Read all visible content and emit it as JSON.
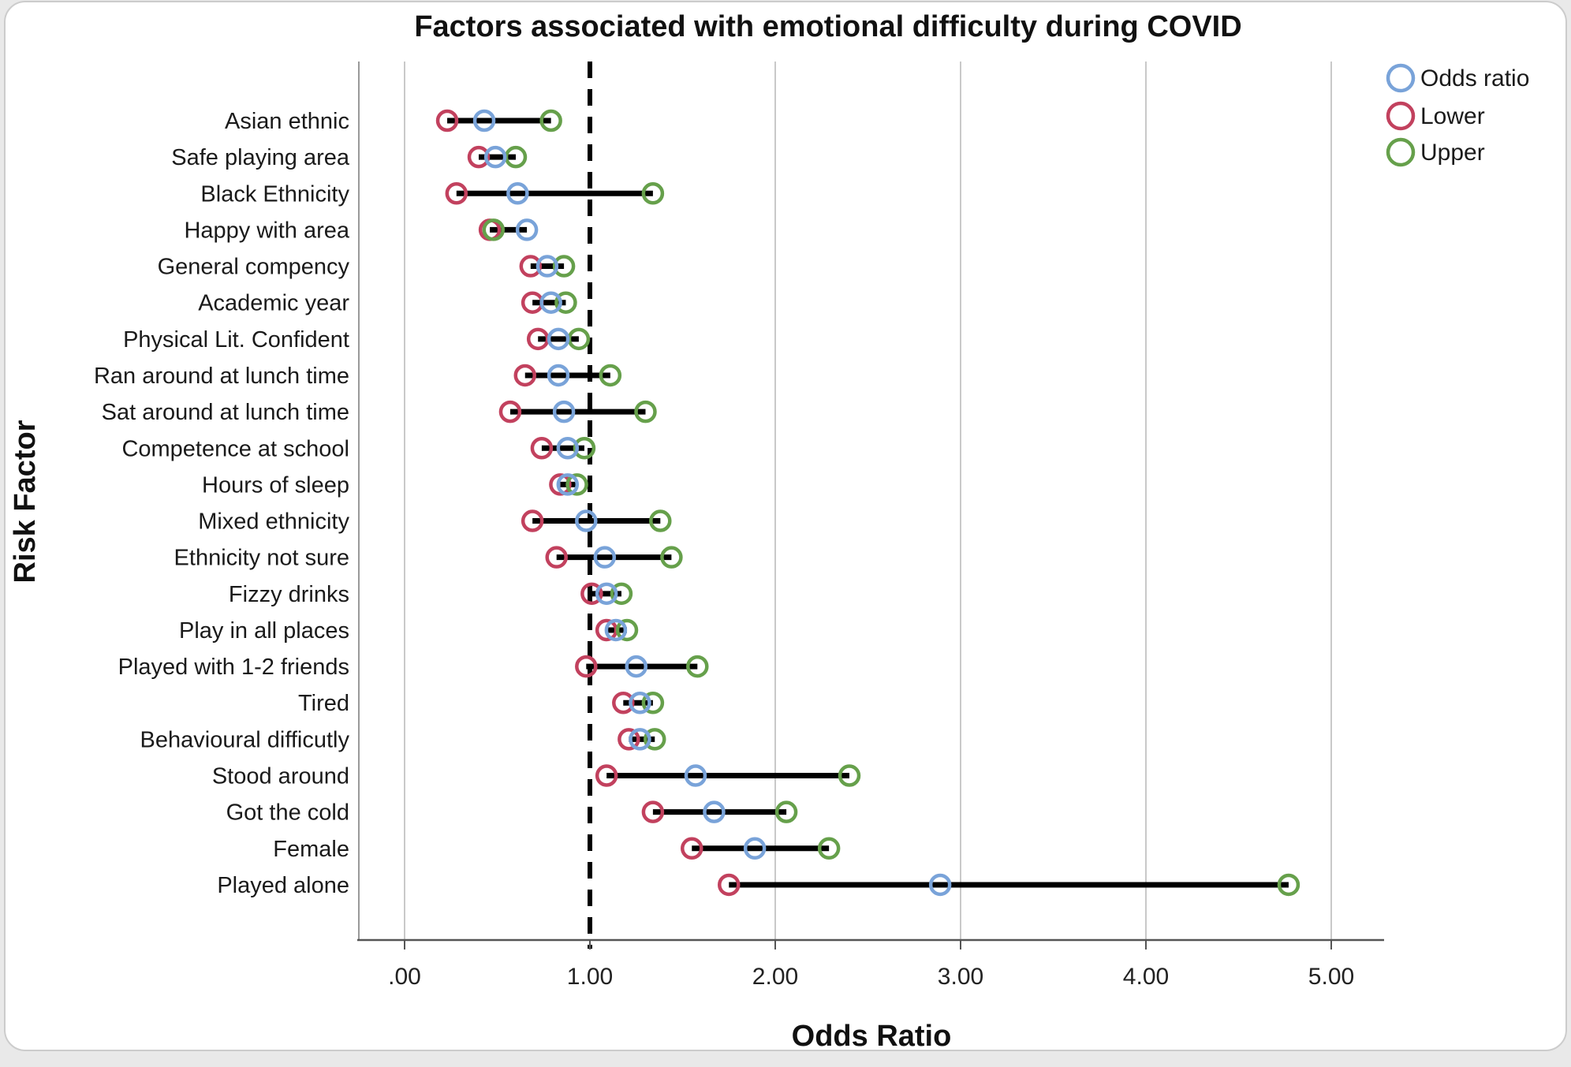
{
  "chart_data": {
    "type": "scatter",
    "subtype": "forest-plot-odds-ratios",
    "title": "Factors associated with emotional difficulty during COVID",
    "xlabel": "Odds Ratio",
    "ylabel": "Risk Factor",
    "x_ticks": [
      ".00",
      "1.00",
      "2.00",
      "3.00",
      "4.00",
      "5.00"
    ],
    "x_tick_values": [
      0,
      1,
      2,
      3,
      4,
      5
    ],
    "xlim": [
      -0.25,
      5.3
    ],
    "grid": "vertical-light-gray",
    "reference_line_value": 1.0,
    "reference_line_style": "black-dashed",
    "legend_position": "top-right",
    "legend": [
      {
        "label": "Odds ratio",
        "color": "#79A3D9"
      },
      {
        "label": "Lower",
        "color": "#C2415E"
      },
      {
        "label": "Upper",
        "color": "#66A04B"
      }
    ],
    "rows": [
      {
        "label": "Asian ethnic",
        "or": 0.43,
        "lower": 0.23,
        "upper": 0.79
      },
      {
        "label": "Safe playing area",
        "or": 0.49,
        "lower": 0.4,
        "upper": 0.6
      },
      {
        "label": "Black Ethnicity",
        "or": 0.61,
        "lower": 0.28,
        "upper": 1.34
      },
      {
        "label": "Happy with area",
        "or": 0.66,
        "lower": 0.46,
        "upper": 0.48
      },
      {
        "label": "General compency",
        "or": 0.77,
        "lower": 0.68,
        "upper": 0.86
      },
      {
        "label": "Academic year",
        "or": 0.79,
        "lower": 0.69,
        "upper": 0.87
      },
      {
        "label": "Physical Lit. Confident",
        "or": 0.83,
        "lower": 0.72,
        "upper": 0.94
      },
      {
        "label": "Ran around at lunch time",
        "or": 0.83,
        "lower": 0.65,
        "upper": 1.11
      },
      {
        "label": "Sat around at lunch time",
        "or": 0.86,
        "lower": 0.57,
        "upper": 1.3
      },
      {
        "label": "Competence at school",
        "or": 0.88,
        "lower": 0.74,
        "upper": 0.97
      },
      {
        "label": "Hours of sleep",
        "or": 0.88,
        "lower": 0.84,
        "upper": 0.93
      },
      {
        "label": "Mixed ethnicity",
        "or": 0.98,
        "lower": 0.69,
        "upper": 1.38
      },
      {
        "label": "Ethnicity not sure",
        "or": 1.08,
        "lower": 0.82,
        "upper": 1.44
      },
      {
        "label": "Fizzy drinks",
        "or": 1.09,
        "lower": 1.01,
        "upper": 1.17
      },
      {
        "label": "Play in all places",
        "or": 1.14,
        "lower": 1.09,
        "upper": 1.2
      },
      {
        "label": "Played with 1-2 friends",
        "or": 1.25,
        "lower": 0.98,
        "upper": 1.58
      },
      {
        "label": "Tired",
        "or": 1.27,
        "lower": 1.18,
        "upper": 1.34
      },
      {
        "label": "Behavioural difficutly",
        "or": 1.27,
        "lower": 1.21,
        "upper": 1.35
      },
      {
        "label": "Stood around",
        "or": 1.57,
        "lower": 1.09,
        "upper": 2.4
      },
      {
        "label": "Got the cold",
        "or": 1.67,
        "lower": 1.34,
        "upper": 2.06
      },
      {
        "label": "Female",
        "or": 1.89,
        "lower": 1.55,
        "upper": 2.29
      },
      {
        "label": "Played alone",
        "or": 2.89,
        "lower": 1.75,
        "upper": 4.77
      }
    ],
    "colors": {
      "gridline": "#c9c9c9",
      "frame": "#9a9a9a",
      "axis": "#555555",
      "interval_line": "#000000",
      "card_border": "#cccccc",
      "background": "#ffffff"
    }
  }
}
